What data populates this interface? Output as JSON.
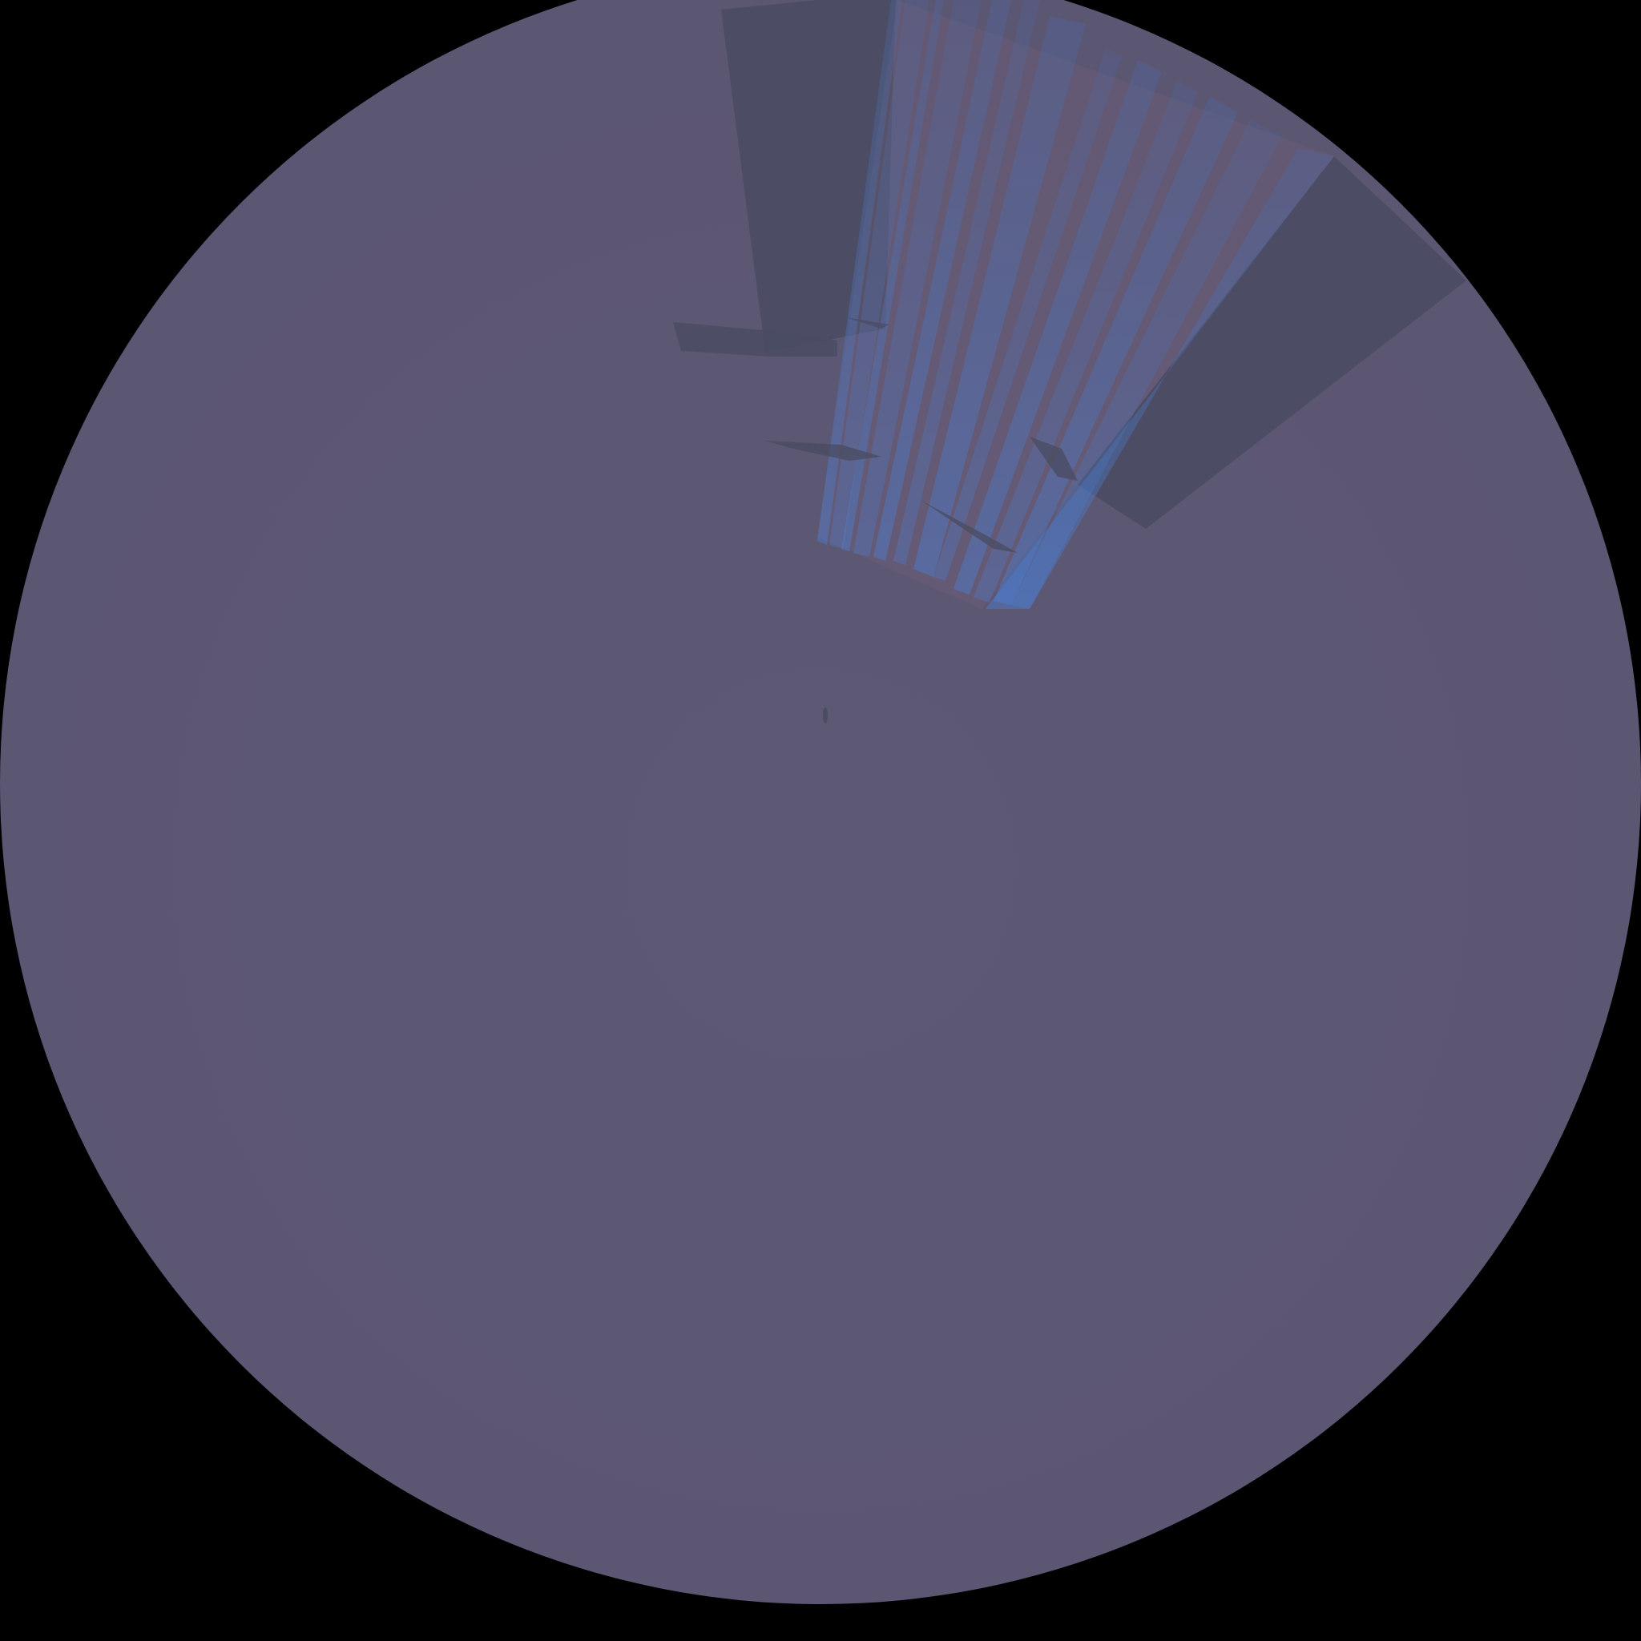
{
  "scene": {
    "background_color": "#000000",
    "sky_color": "#5d5874",
    "sky_shade_color": "#5a5670",
    "shadow_panel_color": "#4a4c63",
    "light_ray_color": "#4a6aa8",
    "light_ray_glow_color": "#4a7fd6",
    "sunset_tint_color": "#8a6a80"
  }
}
